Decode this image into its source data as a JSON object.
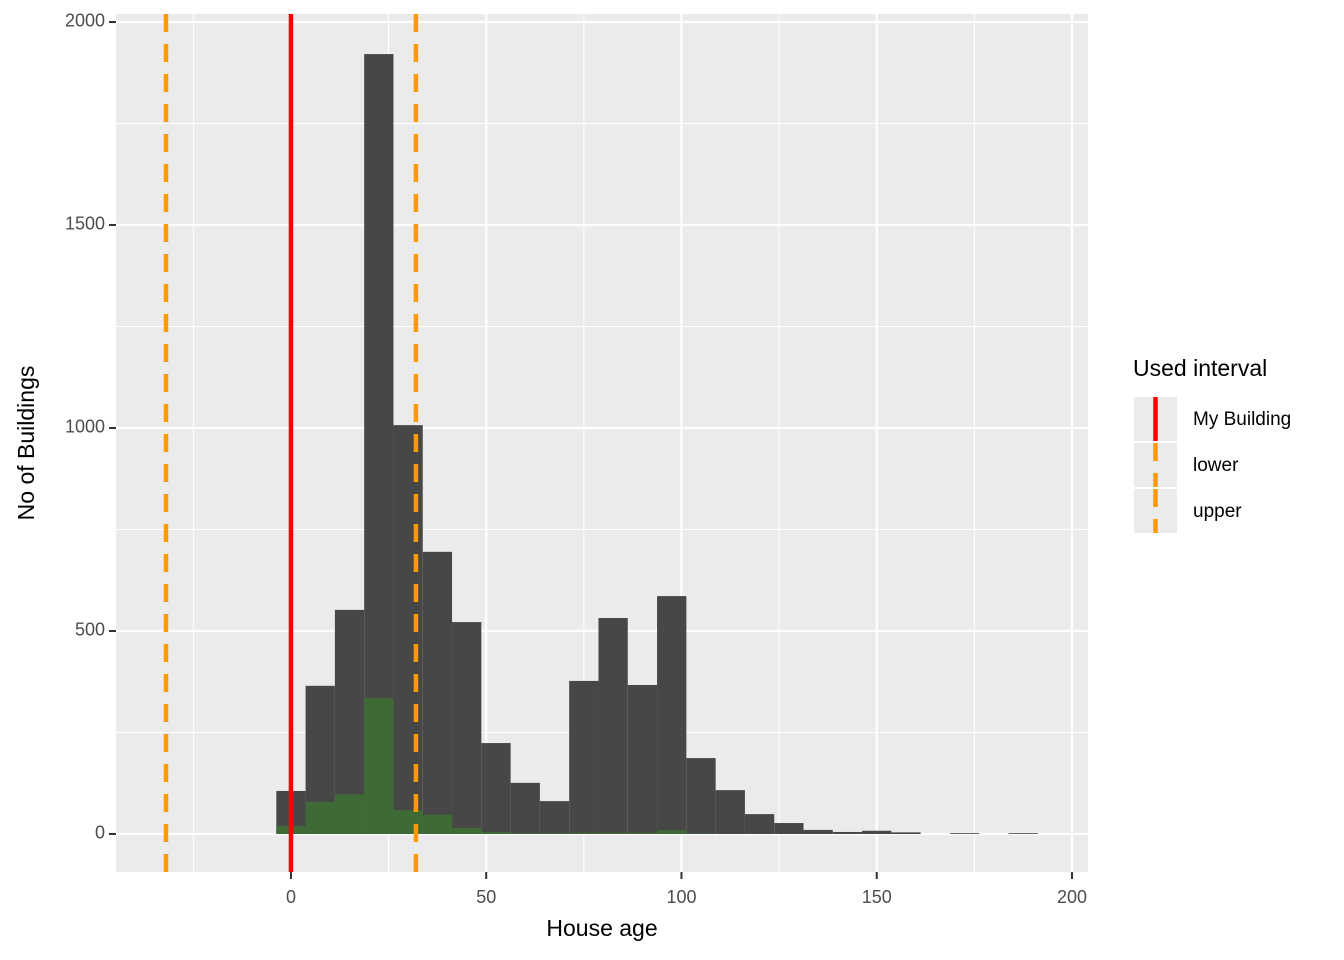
{
  "chart_data": {
    "type": "histogram",
    "x_label": "House age",
    "y_label": "No of Buildings",
    "bins": [
      -3.75,
      3.75,
      11.25,
      18.75,
      26.25,
      33.75,
      41.25,
      48.75,
      56.25,
      63.75,
      71.25,
      78.75,
      86.25,
      93.75,
      101.25,
      108.75,
      116.25,
      123.75,
      131.25,
      138.75,
      146.25,
      153.75,
      161.25,
      168.75,
      176.25,
      183.75,
      191.25
    ],
    "series": [
      {
        "color": "#474747",
        "values": [
          106,
          365,
          552,
          1921,
          1007,
          695,
          522,
          224,
          126,
          81,
          377,
          532,
          367,
          586,
          187,
          108,
          49,
          27,
          10,
          5,
          8,
          4,
          0,
          2,
          0,
          2
        ]
      },
      {
        "color": "#3d6a35",
        "values": [
          20,
          79,
          98,
          335,
          59,
          47,
          15,
          5,
          2,
          2,
          3,
          3,
          3,
          9,
          1,
          0,
          0,
          0,
          0,
          0,
          0,
          0,
          0,
          0,
          0,
          0
        ]
      }
    ],
    "vlines": [
      {
        "name": "My Building",
        "value": 0,
        "color": "#ff0000",
        "dashed": false
      },
      {
        "name": "lower",
        "value": -32,
        "color": "#ff9900",
        "dashed": true
      },
      {
        "name": "upper",
        "value": 32,
        "color": "#ff9900",
        "dashed": true
      }
    ],
    "legend_title": "Used interval",
    "legend_position": "right",
    "xlim": [
      -44.8,
      204.1
    ],
    "ylim": [
      -93.6,
      2019.7
    ],
    "xticks": [
      0,
      50,
      100,
      150,
      200
    ],
    "yticks": [
      0,
      500,
      1000,
      1500,
      2000
    ],
    "xminor": [
      -25,
      25,
      75,
      125,
      175
    ],
    "yminor": [
      250,
      750,
      1250,
      1750
    ],
    "grid": true
  }
}
